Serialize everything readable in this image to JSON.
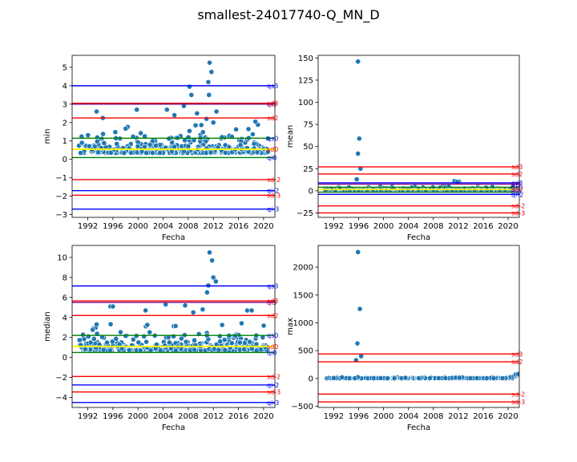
{
  "figure": {
    "title": "smallest-24017740-Q_MN_D"
  },
  "colors": {
    "point_fill": "#1f77b4",
    "point_edge": "#ffffff",
    "line_red": "#ff0000",
    "line_blue": "#0000ff",
    "line_green": "#008000",
    "line_yellow": "#ffff00",
    "label_purple": "#800080"
  },
  "chart_data": [
    {
      "type": "scatter",
      "ylabel": "min",
      "xlabel": "Fecha",
      "xlim": [
        1989.5,
        2021.8
      ],
      "ylim": [
        -3.15,
        5.65
      ],
      "xticks": [
        1992,
        1996,
        2000,
        2004,
        2008,
        2012,
        2016,
        2020
      ],
      "yticks": [
        -3,
        -2,
        -1,
        0,
        1,
        2,
        3,
        4,
        5
      ],
      "refs": [
        {
          "label": "qs3",
          "y": 4.0,
          "color": "blue"
        },
        {
          "label": "sd3",
          "y": 3.05,
          "color": "red"
        },
        {
          "label": "qi3",
          "y": 3.0,
          "color": "purple"
        },
        {
          "label": "sd2",
          "y": 2.25,
          "color": "red"
        },
        {
          "label": "qs0",
          "y": 1.15,
          "color": "green"
        },
        {
          "label": "sd0",
          "y": 0.55,
          "color": "yellow"
        },
        {
          "label": "qi0",
          "y": 0.1,
          "color": "green"
        },
        {
          "label": "sd-2",
          "y": -1.1,
          "color": "red"
        },
        {
          "label": "qi-2",
          "y": -1.7,
          "color": "blue"
        },
        {
          "label": "sd-3",
          "y": -1.95,
          "color": "red"
        },
        {
          "label": "qi-3",
          "y": -2.7,
          "color": "blue"
        }
      ],
      "generated": {
        "base": 0.35,
        "spread": 0.9,
        "seed": 11
      },
      "outliers": [
        [
          2011.4,
          5.25
        ],
        [
          2011.7,
          4.75
        ],
        [
          2011.2,
          4.2
        ],
        [
          2008.2,
          3.95
        ],
        [
          2011.3,
          3.5
        ],
        [
          2008.5,
          3.5
        ],
        [
          1993.4,
          2.6
        ],
        [
          1999.8,
          2.7
        ],
        [
          2004.6,
          2.7
        ],
        [
          2007.3,
          2.9
        ],
        [
          2012.5,
          2.6
        ],
        [
          2009.4,
          2.5
        ],
        [
          2005.8,
          2.4
        ],
        [
          1994.4,
          2.25
        ],
        [
          2010.9,
          2.2
        ],
        [
          2018.7,
          2.05
        ],
        [
          2012.0,
          2.0
        ]
      ]
    },
    {
      "type": "scatter",
      "ylabel": "mean",
      "xlabel": "Fecha",
      "xlim": [
        1989.5,
        2021.8
      ],
      "ylim": [
        -30,
        153
      ],
      "xticks": [
        1992,
        1996,
        2000,
        2004,
        2008,
        2012,
        2016,
        2020
      ],
      "yticks": [
        -25,
        0,
        25,
        50,
        75,
        100,
        125,
        150
      ],
      "refs": [
        {
          "label": "sd3",
          "y": 27,
          "color": "red"
        },
        {
          "label": "sd2",
          "y": 19,
          "color": "red"
        },
        {
          "label": "qs3",
          "y": 9,
          "color": "blue"
        },
        {
          "label": "qi3",
          "y": 7.5,
          "color": "purple"
        },
        {
          "label": "qs0",
          "y": 4,
          "color": "green"
        },
        {
          "label": "sd0",
          "y": 1.5,
          "color": "yellow"
        },
        {
          "label": "qi0",
          "y": -1.5,
          "color": "green"
        },
        {
          "label": "qi-2",
          "y": -4,
          "color": "blue"
        },
        {
          "label": "sd-2",
          "y": -17,
          "color": "red"
        },
        {
          "label": "sd-3",
          "y": -25,
          "color": "red"
        }
      ],
      "generated": {
        "base": 0.5,
        "spread": 2.5,
        "seed": 23
      },
      "outliers": [
        [
          1995.9,
          146
        ],
        [
          1996.1,
          59
        ],
        [
          1995.9,
          42
        ],
        [
          1996.3,
          25
        ],
        [
          1995.7,
          13
        ],
        [
          2011.4,
          11
        ],
        [
          2012.1,
          10.5
        ],
        [
          2011.8,
          10
        ]
      ]
    },
    {
      "type": "scatter",
      "ylabel": "median",
      "xlabel": "Fecha",
      "xlim": [
        1989.5,
        2021.8
      ],
      "ylim": [
        -5.0,
        11.2
      ],
      "xticks": [
        1992,
        1996,
        2000,
        2004,
        2008,
        2012,
        2016,
        2020
      ],
      "yticks": [
        -4,
        -2,
        0,
        2,
        4,
        6,
        8,
        10
      ],
      "refs": [
        {
          "label": "qs3",
          "y": 7.15,
          "color": "blue"
        },
        {
          "label": "sd3",
          "y": 5.65,
          "color": "red"
        },
        {
          "label": "qi3",
          "y": 5.5,
          "color": "purple"
        },
        {
          "label": "sd2",
          "y": 4.2,
          "color": "red"
        },
        {
          "label": "qs0",
          "y": 2.2,
          "color": "green"
        },
        {
          "label": "sd0",
          "y": 1.1,
          "color": "yellow"
        },
        {
          "label": "qi0",
          "y": 0.5,
          "color": "green"
        },
        {
          "label": "sd-2",
          "y": -1.9,
          "color": "red"
        },
        {
          "label": "qi-2",
          "y": -2.75,
          "color": "blue"
        },
        {
          "label": "sd-3",
          "y": -3.45,
          "color": "red"
        },
        {
          "label": "qi-3",
          "y": -4.5,
          "color": "blue"
        }
      ],
      "generated": {
        "base": 0.7,
        "spread": 1.6,
        "seed": 37
      },
      "outliers": [
        [
          2011.4,
          10.5
        ],
        [
          2011.8,
          9.7
        ],
        [
          2012.0,
          8.0
        ],
        [
          2012.4,
          7.6
        ],
        [
          2011.2,
          7.2
        ],
        [
          2011.0,
          6.5
        ],
        [
          1995.6,
          5.1
        ],
        [
          1996.0,
          5.1
        ],
        [
          2004.4,
          5.3
        ],
        [
          2007.5,
          5.2
        ],
        [
          2001.2,
          4.7
        ],
        [
          2008.8,
          4.5
        ],
        [
          2010.3,
          4.8
        ],
        [
          2017.4,
          4.7
        ],
        [
          2018.1,
          4.7
        ],
        [
          1993.4,
          3.3
        ]
      ]
    },
    {
      "type": "scatter",
      "ylabel": "max",
      "xlabel": "Fecha",
      "xlim": [
        1989.5,
        2021.8
      ],
      "ylim": [
        -520,
        2390
      ],
      "xticks": [
        1992,
        1996,
        2000,
        2004,
        2008,
        2012,
        2016,
        2020
      ],
      "yticks": [
        -500,
        0,
        500,
        1000,
        1500,
        2000
      ],
      "refs": [
        {
          "label": "sd3",
          "y": 440,
          "color": "red"
        },
        {
          "label": "sd2",
          "y": 300,
          "color": "red"
        },
        {
          "label": "sd-2",
          "y": -280,
          "color": "red"
        },
        {
          "label": "sd-3",
          "y": -420,
          "color": "red"
        }
      ],
      "generated": {
        "base": 4,
        "spread": 12,
        "seed": 53
      },
      "outliers": [
        [
          1995.9,
          2270
        ],
        [
          1996.2,
          1250
        ],
        [
          1995.8,
          630
        ],
        [
          1996.4,
          400
        ],
        [
          1995.6,
          330
        ],
        [
          2011.6,
          15
        ],
        [
          2012.2,
          12
        ],
        [
          2020.4,
          25
        ],
        [
          2020.9,
          35
        ],
        [
          2021.3,
          45
        ],
        [
          2021.5,
          60
        ],
        [
          2021.2,
          70
        ],
        [
          2021.6,
          80
        ]
      ]
    }
  ]
}
